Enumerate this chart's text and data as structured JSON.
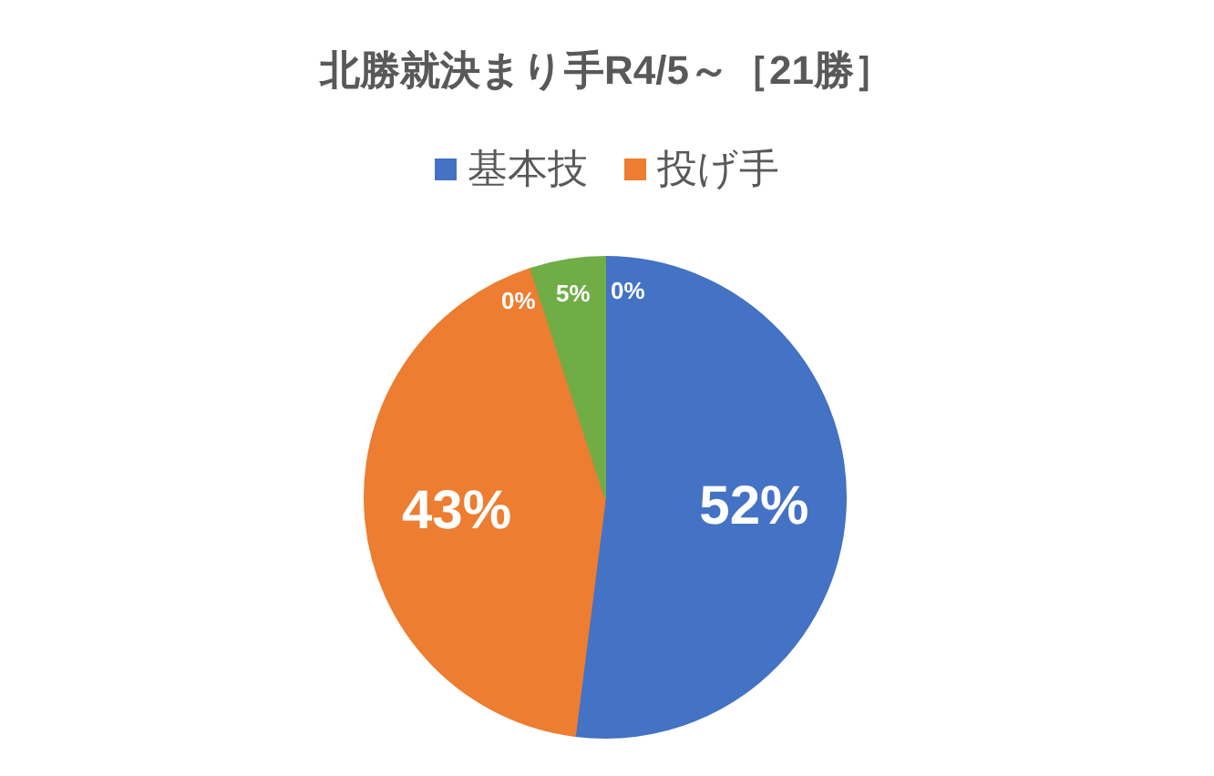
{
  "chart_data": {
    "type": "pie",
    "title": "北勝就決まり手R4/5～［21勝］",
    "categories": [
      "基本技",
      "投げ手",
      null,
      null,
      null
    ],
    "values": [
      52,
      43,
      0,
      5,
      0
    ],
    "colors": [
      "#4472c4",
      "#ed7d31",
      null,
      "#70ad47",
      null
    ],
    "value_labels": [
      "52%",
      "43%",
      "0%",
      "5%",
      "0%"
    ],
    "legend": "top"
  }
}
